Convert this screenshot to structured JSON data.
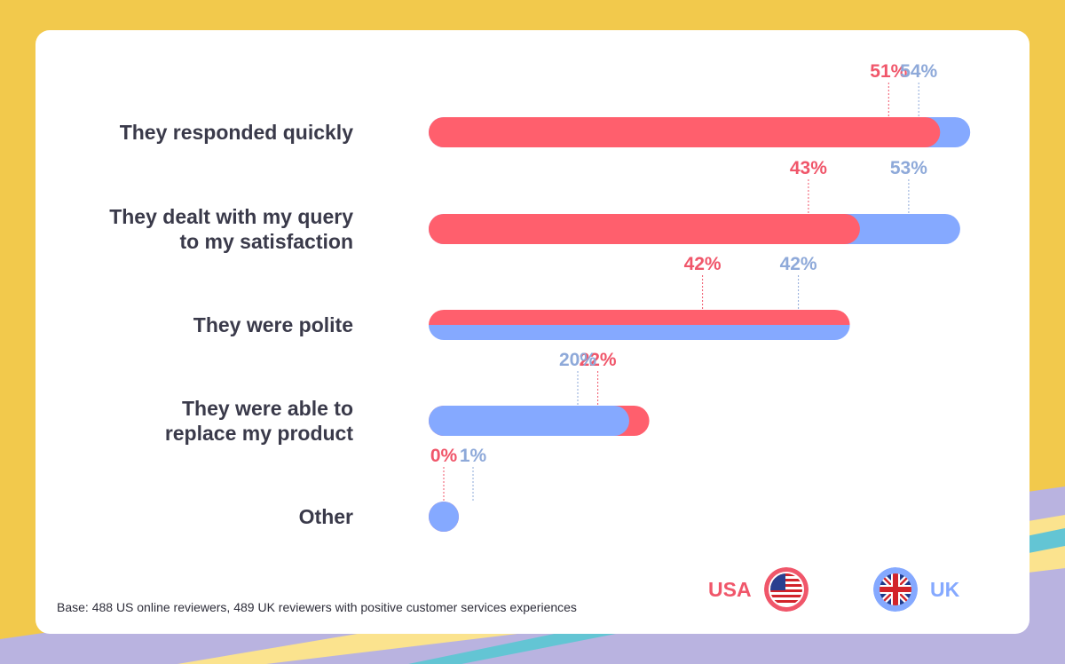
{
  "colors": {
    "usa": "#FF5F6D",
    "uk": "#85A9FF",
    "usa_label": "#F0566A",
    "uk_label": "#8EA9D9",
    "background": "#F2C94C",
    "card": "#FFFFFF"
  },
  "chart_data": {
    "type": "bar",
    "orientation": "horizontal",
    "categories": [
      [
        "They responded quickly"
      ],
      [
        "They dealt with my query",
        "to my satisfaction"
      ],
      [
        "They were polite"
      ],
      [
        "They were able to",
        "replace my product"
      ],
      [
        "Other"
      ]
    ],
    "series": [
      {
        "name": "USA",
        "values": [
          51,
          43,
          42,
          22,
          0
        ]
      },
      {
        "name": "UK",
        "values": [
          54,
          53,
          42,
          20,
          1
        ]
      }
    ],
    "value_suffix": "%",
    "xlim": [
      0,
      54
    ],
    "grid": false,
    "legend": "bottom-right"
  },
  "legend": {
    "usa_label": "USA",
    "uk_label": "UK",
    "usa_flag_icon": "us-flag-icon",
    "uk_flag_icon": "uk-flag-icon"
  },
  "footnote": "Base: 488 US online reviewers, 489 UK reviewers with positive customer services experiences"
}
